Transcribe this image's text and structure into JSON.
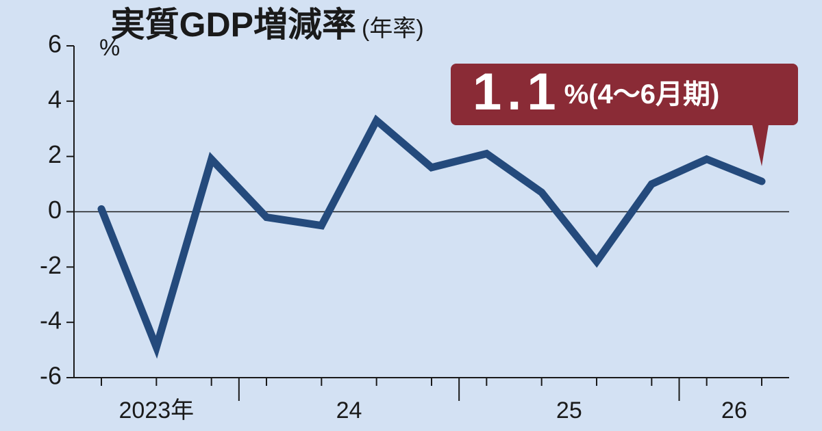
{
  "chart_data": {
    "type": "line",
    "title": "実質GDP増減率",
    "subtitle": "(年率)",
    "y_unit": "%",
    "categories": [
      null,
      null,
      null,
      null,
      null,
      null,
      null,
      null,
      null,
      null,
      null,
      null,
      null
    ],
    "x_groups": [
      {
        "label": "2023年",
        "start": 0,
        "end": 2
      },
      {
        "label": "24",
        "start": 3,
        "end": 6
      },
      {
        "label": "25",
        "start": 7,
        "end": 10
      },
      {
        "label": "26",
        "start": 11,
        "end": 12
      }
    ],
    "series": [
      {
        "name": "実質GDP増減率",
        "color": "#244a7c",
        "values": [
          0.1,
          -4.9,
          1.9,
          -0.2,
          -0.5,
          3.3,
          1.6,
          2.1,
          0.7,
          -1.8,
          1.0,
          1.9,
          1.1
        ]
      }
    ],
    "ylim": [
      -6,
      6
    ],
    "yticks": [
      -6,
      -4,
      -2,
      0,
      2,
      4,
      6
    ],
    "annotation": {
      "unit": "%",
      "period": "(4〜6月期)",
      "color": "#8a2b36"
    }
  }
}
